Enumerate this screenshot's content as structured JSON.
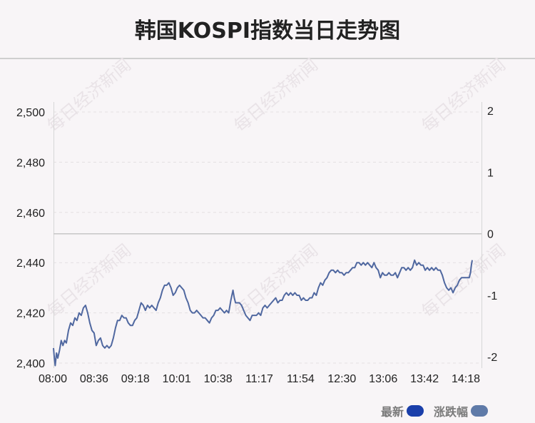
{
  "title": "韩国KOSPI指数当日走势图",
  "legend": [
    {
      "label": "最新",
      "color": "#1a3faa"
    },
    {
      "label": "涨跌幅",
      "color": "#5f7aa8"
    }
  ],
  "watermark": "每日经济新闻",
  "chart_data": {
    "type": "line",
    "title": "韩国KOSPI指数当日走势图",
    "x_ticks": [
      "08:00",
      "08:36",
      "09:18",
      "10:01",
      "10:38",
      "11:17",
      "11:54",
      "12:30",
      "13:06",
      "13:42",
      "14:18"
    ],
    "y_left_ticks": [
      "2,500",
      "2,480",
      "2,460",
      "2,440",
      "2,420",
      "2,400"
    ],
    "y_left_values": [
      2500,
      2480,
      2460,
      2440,
      2420,
      2400
    ],
    "y_right_ticks": [
      "2",
      "1",
      "0",
      "-1",
      "-2"
    ],
    "y_right_values": [
      2,
      1,
      0,
      -1,
      -2
    ],
    "ylim": [
      2400,
      2500
    ],
    "ylim_right": [
      -2,
      2
    ],
    "zero_change_level": 2451.5,
    "grid": true,
    "legend_position": "bottom-right",
    "series": [
      {
        "name": "最新",
        "color": "#5068a0",
        "points": [
          [
            0,
            2406
          ],
          [
            0.2,
            2402
          ],
          [
            0.4,
            2399
          ],
          [
            0.7,
            2404
          ],
          [
            1.0,
            2402
          ],
          [
            1.4,
            2405
          ],
          [
            1.8,
            2409
          ],
          [
            2.2,
            2407
          ],
          [
            2.6,
            2409
          ],
          [
            3.0,
            2408
          ],
          [
            3.5,
            2413
          ],
          [
            4.0,
            2416
          ],
          [
            4.5,
            2415
          ],
          [
            5.0,
            2418
          ],
          [
            5.5,
            2417
          ],
          [
            6.0,
            2420
          ],
          [
            6.5,
            2419
          ],
          [
            7.0,
            2422
          ],
          [
            7.5,
            2423
          ],
          [
            8.0,
            2420
          ],
          [
            8.5,
            2416
          ],
          [
            9.0,
            2413
          ],
          [
            9.5,
            2412
          ],
          [
            10.0,
            2407
          ],
          [
            10.5,
            2409
          ],
          [
            11.0,
            2410
          ],
          [
            11.5,
            2407
          ],
          [
            12.0,
            2406
          ],
          [
            12.5,
            2407
          ],
          [
            13.0,
            2406
          ],
          [
            13.5,
            2407
          ],
          [
            14.0,
            2410
          ],
          [
            14.5,
            2414
          ],
          [
            15.0,
            2417
          ],
          [
            15.5,
            2417
          ],
          [
            16.0,
            2419
          ],
          [
            16.5,
            2418
          ],
          [
            17.0,
            2418
          ],
          [
            17.5,
            2416
          ],
          [
            18.0,
            2415
          ],
          [
            18.5,
            2415
          ],
          [
            19.0,
            2417
          ],
          [
            19.5,
            2418
          ],
          [
            20.0,
            2421
          ],
          [
            20.5,
            2424
          ],
          [
            21.0,
            2423
          ],
          [
            21.5,
            2421
          ],
          [
            22.0,
            2423
          ],
          [
            22.5,
            2422
          ],
          [
            23.0,
            2423
          ],
          [
            23.5,
            2422
          ],
          [
            24.0,
            2421
          ],
          [
            24.5,
            2424
          ],
          [
            25.0,
            2426
          ],
          [
            25.5,
            2429
          ],
          [
            26.0,
            2431
          ],
          [
            26.5,
            2431
          ],
          [
            27.0,
            2432
          ],
          [
            27.5,
            2430
          ],
          [
            28.0,
            2427
          ],
          [
            28.5,
            2428
          ],
          [
            29.0,
            2430
          ],
          [
            29.5,
            2431
          ],
          [
            30.0,
            2430
          ],
          [
            30.5,
            2429
          ],
          [
            31.0,
            2426
          ],
          [
            31.5,
            2424
          ],
          [
            32.0,
            2421
          ],
          [
            32.5,
            2420
          ],
          [
            33.0,
            2420
          ],
          [
            33.5,
            2421
          ],
          [
            34.0,
            2420
          ],
          [
            34.5,
            2419
          ],
          [
            35.0,
            2418
          ],
          [
            35.5,
            2418
          ],
          [
            36.0,
            2417
          ],
          [
            36.5,
            2416
          ],
          [
            37.0,
            2418
          ],
          [
            37.5,
            2419
          ],
          [
            38.0,
            2421
          ],
          [
            38.5,
            2421
          ],
          [
            39.0,
            2422
          ],
          [
            39.5,
            2421
          ],
          [
            40.0,
            2420
          ],
          [
            40.5,
            2421
          ],
          [
            41.0,
            2420
          ],
          [
            41.5,
            2425
          ],
          [
            42.0,
            2429
          ],
          [
            42.3,
            2426
          ],
          [
            42.6,
            2424
          ],
          [
            43.0,
            2424
          ],
          [
            43.5,
            2424
          ],
          [
            44.0,
            2423
          ],
          [
            44.5,
            2421
          ],
          [
            45.0,
            2419
          ],
          [
            45.5,
            2418
          ],
          [
            46.0,
            2417
          ],
          [
            46.5,
            2419
          ],
          [
            47.0,
            2419
          ],
          [
            47.5,
            2419
          ],
          [
            48.0,
            2420
          ],
          [
            48.5,
            2419
          ],
          [
            49.0,
            2422
          ],
          [
            49.5,
            2423
          ],
          [
            50.0,
            2422
          ],
          [
            50.5,
            2423
          ],
          [
            51.0,
            2424
          ],
          [
            51.5,
            2425
          ],
          [
            52.0,
            2426
          ],
          [
            52.5,
            2424
          ],
          [
            53.0,
            2425
          ],
          [
            53.5,
            2425
          ],
          [
            54.0,
            2427
          ],
          [
            54.5,
            2428
          ],
          [
            55.0,
            2427
          ],
          [
            55.5,
            2428
          ],
          [
            56.0,
            2427
          ],
          [
            56.5,
            2428
          ],
          [
            57.0,
            2427
          ],
          [
            57.5,
            2427
          ],
          [
            58.0,
            2425
          ],
          [
            58.5,
            2426
          ],
          [
            59.0,
            2425
          ],
          [
            59.5,
            2425
          ],
          [
            60.0,
            2426
          ],
          [
            60.5,
            2426
          ],
          [
            61.0,
            2428
          ],
          [
            61.5,
            2427
          ],
          [
            62.0,
            2430
          ],
          [
            62.5,
            2432
          ],
          [
            63.0,
            2431
          ],
          [
            63.5,
            2433
          ],
          [
            64.0,
            2434
          ],
          [
            64.5,
            2436
          ],
          [
            65.0,
            2437
          ],
          [
            65.5,
            2437
          ],
          [
            66.0,
            2436
          ],
          [
            66.5,
            2437
          ],
          [
            67.0,
            2436
          ],
          [
            67.5,
            2436
          ],
          [
            68.0,
            2435
          ],
          [
            68.5,
            2436
          ],
          [
            69.0,
            2436
          ],
          [
            69.5,
            2437
          ],
          [
            70.0,
            2438
          ],
          [
            70.5,
            2438
          ],
          [
            71.0,
            2440
          ],
          [
            71.5,
            2440
          ],
          [
            72.0,
            2439
          ],
          [
            72.5,
            2440
          ],
          [
            73.0,
            2439
          ],
          [
            73.5,
            2440
          ],
          [
            74.0,
            2439
          ],
          [
            74.5,
            2438
          ],
          [
            75.0,
            2440
          ],
          [
            75.5,
            2438
          ],
          [
            76.0,
            2437
          ],
          [
            76.5,
            2434
          ],
          [
            77.0,
            2436
          ],
          [
            77.5,
            2435
          ],
          [
            78.0,
            2435
          ],
          [
            78.5,
            2436
          ],
          [
            79.0,
            2435
          ],
          [
            79.5,
            2435
          ],
          [
            80.0,
            2436
          ],
          [
            80.5,
            2434
          ],
          [
            81.0,
            2436
          ],
          [
            81.5,
            2438
          ],
          [
            82.0,
            2438
          ],
          [
            82.5,
            2437
          ],
          [
            83.0,
            2438
          ],
          [
            83.5,
            2437
          ],
          [
            84.0,
            2438
          ],
          [
            84.5,
            2441
          ],
          [
            85.0,
            2439
          ],
          [
            85.5,
            2440
          ],
          [
            86.0,
            2439
          ],
          [
            86.5,
            2439
          ],
          [
            87.0,
            2437
          ],
          [
            87.5,
            2438
          ],
          [
            88.0,
            2437
          ],
          [
            88.5,
            2438
          ],
          [
            89.0,
            2437
          ],
          [
            89.5,
            2438
          ],
          [
            90.0,
            2437
          ],
          [
            90.5,
            2437
          ],
          [
            91.0,
            2435
          ],
          [
            91.5,
            2432
          ],
          [
            92.0,
            2430
          ],
          [
            92.5,
            2429
          ],
          [
            93.0,
            2430
          ],
          [
            93.5,
            2428
          ],
          [
            94.0,
            2430
          ],
          [
            94.5,
            2431
          ],
          [
            95.0,
            2433
          ],
          [
            95.5,
            2434
          ],
          [
            96.0,
            2434
          ],
          [
            96.5,
            2434
          ],
          [
            97.0,
            2434
          ],
          [
            97.3,
            2434
          ],
          [
            97.6,
            2436
          ],
          [
            97.8,
            2439
          ],
          [
            98.0,
            2441
          ]
        ]
      }
    ]
  }
}
